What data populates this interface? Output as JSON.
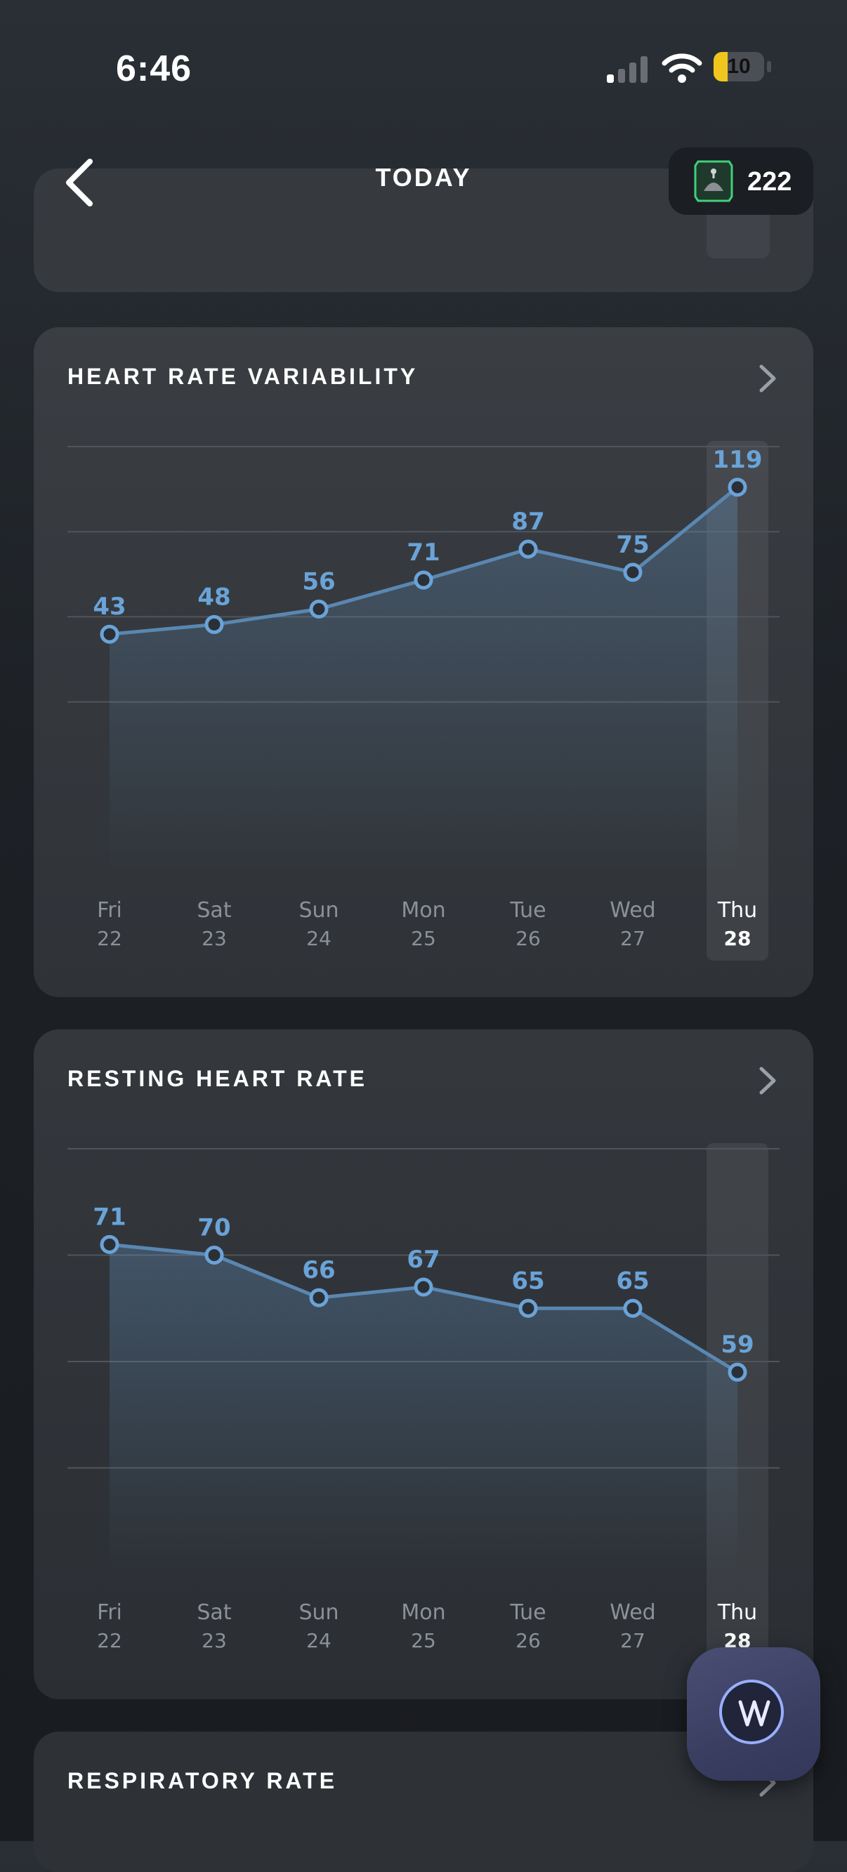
{
  "status_bar": {
    "time": "6:46",
    "battery": "10",
    "battery_color": "#f0c61e"
  },
  "nav": {
    "title": "TODAY",
    "coin_count": "222"
  },
  "colors": {
    "accent": "#6aa3d8",
    "background": "#1d2126",
    "card": "#33373c"
  },
  "cards": [
    {
      "title": "HEART RATE VARIABILITY",
      "chart_data": {
        "type": "line",
        "categories": [
          {
            "day": "Fri",
            "date": "22"
          },
          {
            "day": "Sat",
            "date": "23"
          },
          {
            "day": "Sun",
            "date": "24"
          },
          {
            "day": "Mon",
            "date": "25"
          },
          {
            "day": "Tue",
            "date": "26"
          },
          {
            "day": "Wed",
            "date": "27"
          },
          {
            "day": "Thu",
            "date": "28"
          }
        ],
        "values": [
          43,
          48,
          56,
          71,
          87,
          75,
          119
        ],
        "ylim": [
          -80,
          140
        ],
        "gridlines": [
          140,
          96,
          52,
          8
        ],
        "grid": true,
        "highlight_index": 6
      }
    },
    {
      "title": "RESTING HEART RATE",
      "chart_data": {
        "type": "line",
        "categories": [
          {
            "day": "Fri",
            "date": "22"
          },
          {
            "day": "Sat",
            "date": "23"
          },
          {
            "day": "Sun",
            "date": "24"
          },
          {
            "day": "Mon",
            "date": "25"
          },
          {
            "day": "Tue",
            "date": "26"
          },
          {
            "day": "Wed",
            "date": "27"
          },
          {
            "day": "Thu",
            "date": "28"
          }
        ],
        "values": [
          71,
          70,
          66,
          67,
          65,
          65,
          59
        ],
        "ylim": [
          40,
          80
        ],
        "gridlines": [
          80,
          70,
          60,
          50
        ],
        "grid": true,
        "highlight_index": 6
      }
    },
    {
      "title": "RESPIRATORY RATE"
    }
  ]
}
